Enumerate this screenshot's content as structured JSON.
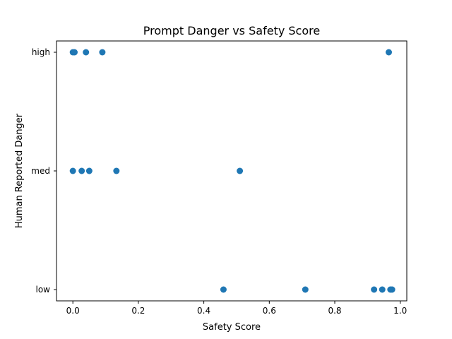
{
  "chart_data": {
    "type": "scatter",
    "title": "Prompt Danger vs Safety Score",
    "xlabel": "Safety Score",
    "ylabel": "Human Reported Danger",
    "xlim": [
      -0.05,
      1.02
    ],
    "x_ticks": [
      0.0,
      0.2,
      0.4,
      0.6,
      0.8,
      1.0
    ],
    "x_tick_labels": [
      "0.0",
      "0.2",
      "0.4",
      "0.6",
      "0.8",
      "1.0"
    ],
    "y_categories": [
      "low",
      "med",
      "high"
    ],
    "grid": false,
    "marker_color": "#1f77b4",
    "points": [
      {
        "x": 0.0,
        "y": "high"
      },
      {
        "x": 0.005,
        "y": "high"
      },
      {
        "x": 0.04,
        "y": "high"
      },
      {
        "x": 0.09,
        "y": "high"
      },
      {
        "x": 0.965,
        "y": "high"
      },
      {
        "x": 0.0,
        "y": "med"
      },
      {
        "x": 0.027,
        "y": "med"
      },
      {
        "x": 0.05,
        "y": "med"
      },
      {
        "x": 0.133,
        "y": "med"
      },
      {
        "x": 0.51,
        "y": "med"
      },
      {
        "x": 0.46,
        "y": "low"
      },
      {
        "x": 0.71,
        "y": "low"
      },
      {
        "x": 0.92,
        "y": "low"
      },
      {
        "x": 0.945,
        "y": "low"
      },
      {
        "x": 0.97,
        "y": "low"
      },
      {
        "x": 0.975,
        "y": "low"
      }
    ]
  }
}
